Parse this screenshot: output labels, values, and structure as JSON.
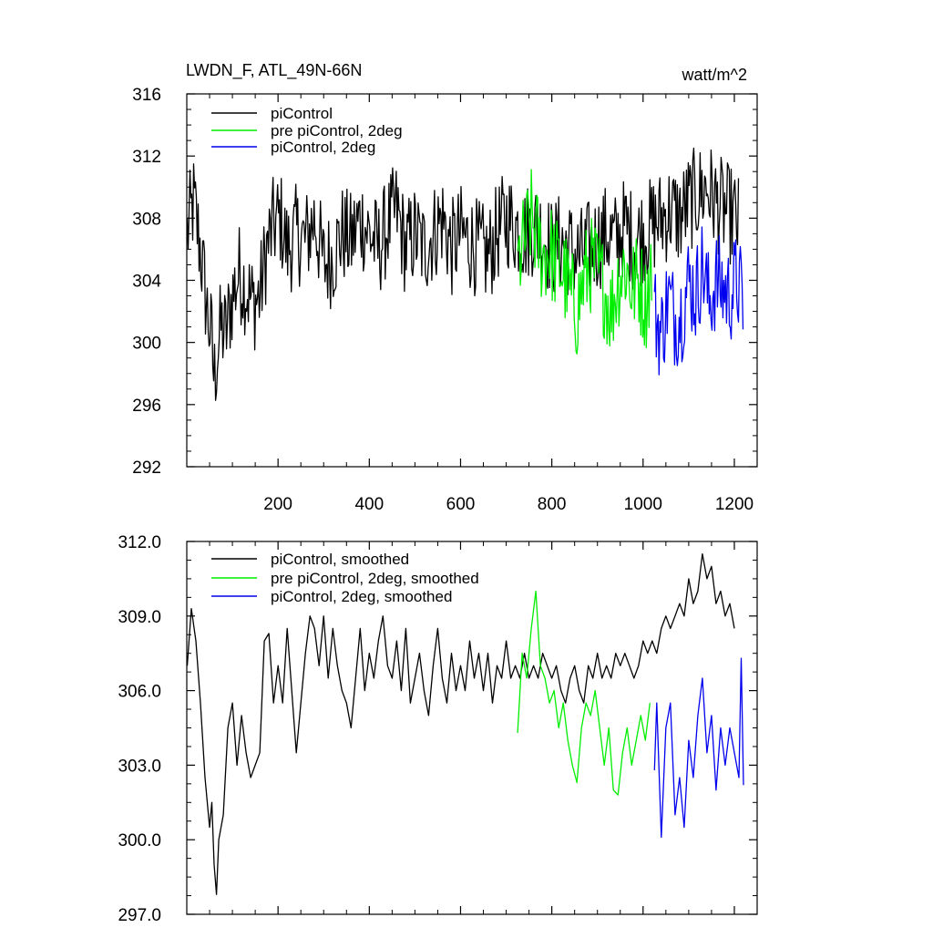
{
  "chart_data": [
    {
      "type": "line",
      "title": "LWDN_F, ATL_49N-66N",
      "units": "watt/m^2",
      "xlim": [
        0,
        1250
      ],
      "ylim": [
        292,
        316
      ],
      "x_ticks": [
        200,
        400,
        600,
        800,
        1000,
        1200
      ],
      "x_tick_labels": [
        "200",
        "400",
        "600",
        "800",
        "1000",
        "1200"
      ],
      "y_ticks": [
        292,
        296,
        300,
        304,
        308,
        312,
        316
      ],
      "y_tick_labels": [
        "292",
        "296",
        "300",
        "304",
        "308",
        "312",
        "316"
      ],
      "grid": false,
      "legend_position": "top-left",
      "series": [
        {
          "name": "piControl",
          "color": "#000000",
          "x": [
            1,
            15,
            30,
            45,
            55,
            60,
            65,
            75,
            85,
            100,
            115,
            130,
            145,
            160,
            175,
            190,
            205,
            220,
            240,
            260,
            280,
            300,
            320,
            340,
            360,
            380,
            400,
            420,
            440,
            460,
            480,
            500,
            520,
            540,
            560,
            580,
            600,
            620,
            640,
            660,
            680,
            700,
            720,
            740,
            760,
            780,
            800,
            820,
            840,
            860,
            880,
            900,
            920,
            940,
            960,
            980,
            1000,
            1020,
            1040,
            1060,
            1080,
            1100,
            1120,
            1140,
            1160,
            1180,
            1200,
            1210
          ],
          "y": [
            307.0,
            309.0,
            306.0,
            302.0,
            300.0,
            297.5,
            299.0,
            301.0,
            300.5,
            303.0,
            304.5,
            303.5,
            302.5,
            303.0,
            306.0,
            307.5,
            308.0,
            306.0,
            307.0,
            306.5,
            308.0,
            305.0,
            305.5,
            307.0,
            306.5,
            308.0,
            307.0,
            306.0,
            307.5,
            308.5,
            306.0,
            307.0,
            306.0,
            307.0,
            308.0,
            306.0,
            307.0,
            306.5,
            306.0,
            305.5,
            307.0,
            308.0,
            307.5,
            307.0,
            307.5,
            307.0,
            306.0,
            306.5,
            306.0,
            305.5,
            306.0,
            306.5,
            307.0,
            306.5,
            307.5,
            306.5,
            307.0,
            307.5,
            308.0,
            308.5,
            308.0,
            309.0,
            309.5,
            310.0,
            309.0,
            308.5,
            308.0,
            307.5
          ]
        },
        {
          "name": "pre piControl, 2deg",
          "color": "#00ee00",
          "x": [
            725,
            740,
            755,
            765,
            780,
            795,
            810,
            825,
            840,
            855,
            870,
            885,
            900,
            915,
            930,
            945,
            960,
            975,
            990,
            1005,
            1020
          ],
          "y": [
            305.0,
            306.5,
            308.0,
            307.0,
            305.5,
            306.0,
            305.0,
            304.5,
            303.0,
            302.0,
            304.0,
            305.0,
            304.5,
            303.5,
            302.0,
            304.0,
            305.0,
            303.5,
            304.0,
            302.5,
            305.0
          ]
        },
        {
          "name": "piControl, 2deg",
          "color": "#0000ee",
          "x": [
            1025,
            1040,
            1055,
            1070,
            1085,
            1100,
            1115,
            1130,
            1145,
            1160,
            1175,
            1190,
            1205,
            1220
          ],
          "y": [
            302.0,
            300.5,
            303.0,
            301.5,
            302.0,
            304.0,
            303.0,
            305.0,
            302.5,
            304.0,
            303.5,
            303.0,
            304.0,
            302.5
          ]
        }
      ]
    },
    {
      "type": "line",
      "title": "",
      "xlim": [
        0,
        1250
      ],
      "ylim": [
        297,
        312
      ],
      "x_ticks": [
        200,
        400,
        600,
        800,
        1000,
        1200
      ],
      "y_ticks": [
        297,
        300,
        303,
        306,
        309,
        312
      ],
      "y_tick_labels": [
        "297.0",
        "300.0",
        "303.0",
        "306.0",
        "309.0",
        "312.0"
      ],
      "grid": false,
      "legend_position": "top-left",
      "series": [
        {
          "name": "piControl, smoothed",
          "color": "#000000",
          "x": [
            1,
            10,
            20,
            30,
            40,
            50,
            55,
            60,
            65,
            70,
            80,
            90,
            100,
            110,
            120,
            130,
            140,
            150,
            160,
            170,
            180,
            190,
            200,
            210,
            220,
            230,
            240,
            250,
            260,
            270,
            280,
            290,
            300,
            310,
            320,
            330,
            340,
            350,
            360,
            370,
            380,
            390,
            400,
            410,
            420,
            430,
            440,
            450,
            460,
            470,
            480,
            490,
            500,
            510,
            520,
            530,
            540,
            550,
            560,
            570,
            580,
            590,
            600,
            610,
            620,
            630,
            640,
            650,
            660,
            670,
            680,
            690,
            700,
            710,
            720,
            730,
            740,
            750,
            760,
            770,
            780,
            790,
            800,
            810,
            820,
            830,
            840,
            850,
            860,
            870,
            880,
            890,
            900,
            910,
            920,
            930,
            940,
            950,
            960,
            970,
            980,
            990,
            1000,
            1010,
            1020,
            1030,
            1040,
            1050,
            1060,
            1070,
            1080,
            1090,
            1100,
            1110,
            1120,
            1130,
            1140,
            1150,
            1160,
            1170,
            1180,
            1190,
            1200
          ],
          "y": [
            307.0,
            309.3,
            308.0,
            305.5,
            302.5,
            300.5,
            301.5,
            299.0,
            297.8,
            300.0,
            301.0,
            304.5,
            305.5,
            303.0,
            305.0,
            303.5,
            302.5,
            303.0,
            303.5,
            308.0,
            308.3,
            305.5,
            307.0,
            305.5,
            308.5,
            306.0,
            303.5,
            305.5,
            307.5,
            309.0,
            308.5,
            307.0,
            309.0,
            306.5,
            308.5,
            307.0,
            306.0,
            305.5,
            304.5,
            306.5,
            308.5,
            306.0,
            307.5,
            306.5,
            308.0,
            309.0,
            307.0,
            306.5,
            308.0,
            306.0,
            308.5,
            305.5,
            306.5,
            307.5,
            306.0,
            305.0,
            307.0,
            308.5,
            306.5,
            305.5,
            307.5,
            306.0,
            307.0,
            306.0,
            308.0,
            306.5,
            307.5,
            306.0,
            307.5,
            305.5,
            307.0,
            306.5,
            308.0,
            306.5,
            307.0,
            306.5,
            307.5,
            306.5,
            307.0,
            306.5,
            307.5,
            307.0,
            306.5,
            307.0,
            306.0,
            305.5,
            306.5,
            307.0,
            306.0,
            305.5,
            307.0,
            306.5,
            307.5,
            306.5,
            307.0,
            306.5,
            307.5,
            307.0,
            307.5,
            307.0,
            306.5,
            307.0,
            308.0,
            307.5,
            308.0,
            307.5,
            308.5,
            309.0,
            308.5,
            309.0,
            309.5,
            309.0,
            310.5,
            309.5,
            310.0,
            311.5,
            310.5,
            311.0,
            309.5,
            310.0,
            309.0,
            309.5,
            308.5
          ]
        },
        {
          "name": "pre piControl, 2deg, smoothed",
          "color": "#00ee00",
          "x": [
            725,
            735,
            745,
            755,
            765,
            775,
            785,
            795,
            805,
            815,
            825,
            835,
            845,
            855,
            865,
            875,
            885,
            895,
            905,
            915,
            925,
            935,
            945,
            955,
            965,
            975,
            985,
            995,
            1005,
            1015
          ],
          "y": [
            304.3,
            307.5,
            306.5,
            308.5,
            310.0,
            307.0,
            306.5,
            305.5,
            306.0,
            304.5,
            305.5,
            304.0,
            303.0,
            302.3,
            304.5,
            305.5,
            305.0,
            306.0,
            304.5,
            303.0,
            304.5,
            302.0,
            301.8,
            303.5,
            304.5,
            303.0,
            304.0,
            305.0,
            304.0,
            305.5
          ]
        },
        {
          "name": "piControl, 2deg, smoothed",
          "color": "#0000ee",
          "x": [
            1025,
            1030,
            1040,
            1050,
            1060,
            1070,
            1080,
            1090,
            1100,
            1110,
            1120,
            1130,
            1140,
            1150,
            1160,
            1170,
            1180,
            1190,
            1200,
            1210,
            1215,
            1220
          ],
          "y": [
            302.8,
            305.5,
            300.1,
            304.5,
            305.5,
            301.0,
            302.5,
            300.5,
            304.0,
            302.5,
            305.0,
            306.5,
            303.5,
            305.0,
            302.0,
            304.5,
            303.0,
            304.5,
            303.5,
            302.5,
            307.3,
            302.2
          ]
        }
      ]
    }
  ]
}
